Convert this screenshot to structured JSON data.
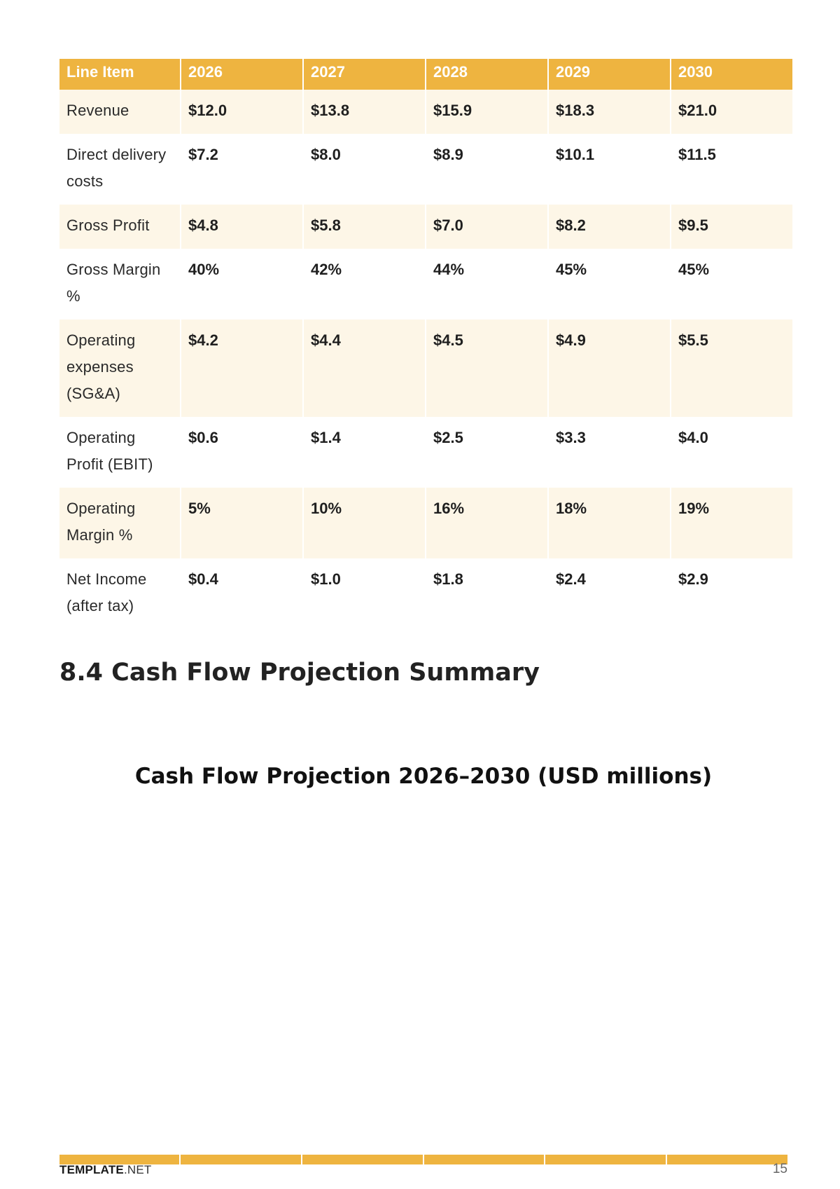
{
  "table": {
    "headers": [
      "Line Item",
      "2026",
      "2027",
      "2028",
      "2029",
      "2030"
    ],
    "rows": [
      [
        "Revenue",
        "$12.0",
        "$13.8",
        "$15.9",
        "$18.3",
        "$21.0"
      ],
      [
        "Direct delivery costs",
        "$7.2",
        "$8.0",
        "$8.9",
        "$10.1",
        "$11.5"
      ],
      [
        "Gross Profit",
        "$4.8",
        "$5.8",
        "$7.0",
        "$8.2",
        "$9.5"
      ],
      [
        "Gross Margin %",
        "40%",
        "42%",
        "44%",
        "45%",
        "45%"
      ],
      [
        "Operating expenses (SG&A)",
        "$4.2",
        "$4.4",
        "$4.5",
        "$4.9",
        "$5.5"
      ],
      [
        "Operating Profit (EBIT)",
        "$0.6",
        "$1.4",
        "$2.5",
        "$3.3",
        "$4.0"
      ],
      [
        "Operating Margin %",
        "5%",
        "10%",
        "16%",
        "18%",
        "19%"
      ],
      [
        "Net Income (after tax)",
        "$0.4",
        "$1.0",
        "$1.8",
        "$2.4",
        "$2.9"
      ]
    ]
  },
  "section": {
    "heading": "8.4 Cash Flow Projection Summary"
  },
  "chart": {
    "title": "Cash Flow Projection 2026–2030 (USD millions)"
  },
  "footer": {
    "brand_bold": "TEMPLATE",
    "brand_light": ".NET",
    "page_number": "15"
  },
  "colors": {
    "accent": "#eeb440",
    "row_shade": "#fdf6e7"
  }
}
